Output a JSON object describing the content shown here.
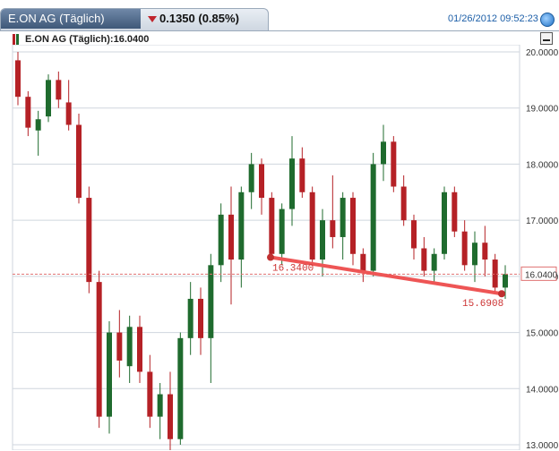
{
  "header": {
    "instrument_tab": "E.ON AG (Täglich)",
    "change": "0.1350 (0.85%)",
    "datetime": "01/26/2012 09:52:23"
  },
  "legend": {
    "label": "E.ON AG (Täglich):16.0400"
  },
  "colors": {
    "up": "#1f6b2e",
    "down": "#b52126",
    "trendline": "#ee5555",
    "last_price_line": "#e07070",
    "annotation_text": "#cc3333",
    "grid": "#cfd6de"
  },
  "icons": [
    "globe-icon",
    "minimize-icon",
    "down-triangle-icon"
  ],
  "chart_data": {
    "type": "candlestick",
    "yaxis": {
      "range": [
        13.0,
        20.1
      ],
      "position": "right",
      "ticks": [
        "20.0000",
        "19.0000",
        "18.0000",
        "17.0000",
        "16.0000",
        "15.0000",
        "14.0000",
        "13.0000"
      ],
      "tick_values": [
        20,
        19,
        18,
        17,
        16,
        15,
        14,
        13
      ]
    },
    "grid": true,
    "last_price": {
      "value": 16.04,
      "label": "16.0400"
    },
    "trendline": {
      "start": {
        "index": 4,
        "value": 16.34,
        "label": "16.3400"
      },
      "end": {
        "index": 12,
        "value": 15.6908,
        "label": "15.6908"
      }
    },
    "candles": [
      [
        19.85,
        20.0,
        19.05,
        19.2
      ],
      [
        19.2,
        19.3,
        18.5,
        18.65
      ],
      [
        18.6,
        18.95,
        18.15,
        18.8
      ],
      [
        18.85,
        19.6,
        18.75,
        19.5
      ],
      [
        19.5,
        19.65,
        19.0,
        19.15
      ],
      [
        19.1,
        19.5,
        18.6,
        18.7
      ],
      [
        18.7,
        18.9,
        17.3,
        17.4
      ],
      [
        17.4,
        17.6,
        15.7,
        15.9
      ],
      [
        15.9,
        16.1,
        13.3,
        13.5
      ],
      [
        13.5,
        15.2,
        13.2,
        15.0
      ],
      [
        15.0,
        15.4,
        14.2,
        14.5
      ],
      [
        14.4,
        15.3,
        14.1,
        15.1
      ],
      [
        15.1,
        15.3,
        14.1,
        14.3
      ],
      [
        14.3,
        14.6,
        13.3,
        13.5
      ],
      [
        13.5,
        14.1,
        13.1,
        13.9
      ],
      [
        13.9,
        14.3,
        12.9,
        13.1
      ],
      [
        13.1,
        15.0,
        13.0,
        14.9
      ],
      [
        14.9,
        15.9,
        14.6,
        15.6
      ],
      [
        15.6,
        15.8,
        14.6,
        14.9
      ],
      [
        14.9,
        16.4,
        14.1,
        16.2
      ],
      [
        16.2,
        17.3,
        15.9,
        17.1
      ],
      [
        17.1,
        17.6,
        15.5,
        16.3
      ],
      [
        16.3,
        17.6,
        15.8,
        17.5
      ],
      [
        17.5,
        18.2,
        17.2,
        18.0
      ],
      [
        18.0,
        18.1,
        17.1,
        17.4
      ],
      [
        17.4,
        17.5,
        16.3,
        16.4
      ],
      [
        16.4,
        17.3,
        16.2,
        17.2
      ],
      [
        17.2,
        18.5,
        16.9,
        18.1
      ],
      [
        18.1,
        18.3,
        17.4,
        17.5
      ],
      [
        17.5,
        17.6,
        16.2,
        16.3
      ],
      [
        16.3,
        17.2,
        16.0,
        17.0
      ],
      [
        17.0,
        17.8,
        16.5,
        16.7
      ],
      [
        16.7,
        17.5,
        16.3,
        17.4
      ],
      [
        17.4,
        17.5,
        16.2,
        16.4
      ],
      [
        16.4,
        16.5,
        15.9,
        16.1
      ],
      [
        16.1,
        18.2,
        16.0,
        18.0
      ],
      [
        18.0,
        18.7,
        17.7,
        18.4
      ],
      [
        18.4,
        18.5,
        17.5,
        17.6
      ],
      [
        17.6,
        17.8,
        16.9,
        17.0
      ],
      [
        17.0,
        17.1,
        16.3,
        16.5
      ],
      [
        16.5,
        16.7,
        16.0,
        16.1
      ],
      [
        16.1,
        16.5,
        15.9,
        16.4
      ],
      [
        16.4,
        17.6,
        16.3,
        17.5
      ],
      [
        17.5,
        17.6,
        16.7,
        16.8
      ],
      [
        16.8,
        17.0,
        16.1,
        16.2
      ],
      [
        16.2,
        16.8,
        15.9,
        16.6
      ],
      [
        16.6,
        16.9,
        16.0,
        16.3
      ],
      [
        16.3,
        16.4,
        15.7,
        15.8
      ],
      [
        15.8,
        16.2,
        15.6,
        16.04
      ]
    ]
  }
}
